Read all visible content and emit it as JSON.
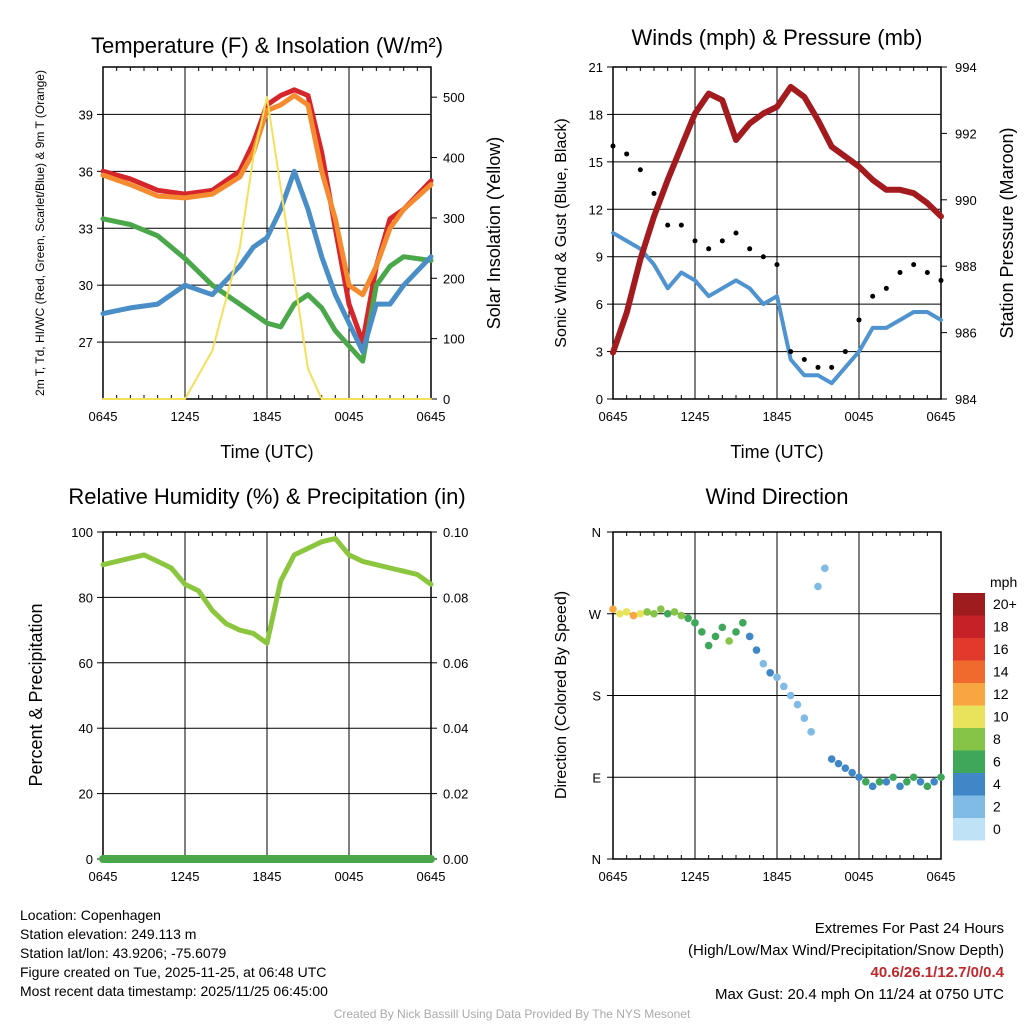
{
  "chart_data": [
    {
      "type": "line",
      "title": "Temperature (F) & Insolation (W/m²)",
      "xlabel": "Time (UTC)",
      "ylabel_left": "2m T, Td, HI/WC (Red, Green, Scarlet/Blue) & 9m T (Orange)",
      "ylabel_right": "Solar Insolation (Yellow)",
      "x_ticks": [
        "0645",
        "1245",
        "1845",
        "0045",
        "0645"
      ],
      "y_ticks_left": [
        "27",
        "30",
        "33",
        "36",
        "39"
      ],
      "y_ticks_right": [
        "0",
        "100",
        "200",
        "300",
        "400",
        "500"
      ],
      "ylim_left": [
        24,
        41.5
      ],
      "ylim_right": [
        0,
        550
      ],
      "x_hours": [
        0,
        2,
        4,
        6,
        8,
        10,
        11,
        12,
        13,
        14,
        15,
        16,
        17,
        18,
        19,
        20,
        21,
        22,
        24
      ],
      "series": [
        {
          "name": "2m T",
          "color": "#d7262b",
          "values": [
            36.0,
            35.6,
            35.0,
            34.8,
            35.0,
            36.0,
            37.5,
            39.5,
            40.0,
            40.3,
            40.0,
            37.0,
            33.0,
            29.0,
            27.0,
            31.0,
            33.5,
            34.0,
            35.5
          ]
        },
        {
          "name": "9m T",
          "color": "#f58b2f",
          "values": [
            35.8,
            35.3,
            34.7,
            34.6,
            34.8,
            35.7,
            37.0,
            39.2,
            39.5,
            40.0,
            39.5,
            36.0,
            33.5,
            30.0,
            29.5,
            31.0,
            33.0,
            34.0,
            35.3
          ]
        },
        {
          "name": "Td",
          "color": "#4aa84a",
          "values": [
            33.5,
            33.2,
            32.6,
            31.4,
            30.0,
            29.0,
            28.5,
            28.0,
            27.8,
            29.0,
            29.5,
            28.8,
            27.6,
            26.8,
            26.0,
            30.0,
            31.0,
            31.5,
            31.3
          ]
        },
        {
          "name": "HI/WC",
          "color": "#4a8ec8",
          "values": [
            28.5,
            28.8,
            29.0,
            30.0,
            29.5,
            31.0,
            32.0,
            32.5,
            34.0,
            36.0,
            34.0,
            31.5,
            29.5,
            28.0,
            26.5,
            29.0,
            29.0,
            30.0,
            31.5
          ]
        },
        {
          "name": "Solar Insolation",
          "color": "#f5e05a",
          "axis": "right",
          "values": [
            0,
            0,
            0,
            0,
            80,
            250,
            400,
            500,
            350,
            200,
            50,
            0,
            0,
            0,
            0,
            0,
            0,
            0,
            0
          ]
        }
      ]
    },
    {
      "type": "line",
      "title": "Winds (mph) & Pressure (mb)",
      "xlabel": "Time (UTC)",
      "ylabel_left": "Sonic Wind & Gust (Blue, Black)",
      "ylabel_right": "Station Pressure (Maroon)",
      "x_ticks": [
        "0645",
        "1245",
        "1845",
        "0045",
        "0645"
      ],
      "y_ticks_left": [
        "0",
        "3",
        "6",
        "9",
        "12",
        "15",
        "18",
        "21"
      ],
      "y_ticks_right": [
        "984",
        "986",
        "988",
        "990",
        "992",
        "994"
      ],
      "ylim_left": [
        0,
        21
      ],
      "ylim_right": [
        984,
        994
      ],
      "x_hours": [
        0,
        1,
        2,
        3,
        4,
        5,
        6,
        7,
        8,
        9,
        10,
        11,
        12,
        13,
        14,
        15,
        16,
        17,
        18,
        19,
        20,
        21,
        22,
        23,
        24
      ],
      "series": [
        {
          "name": "Sonic Wind",
          "color": "#4f93d0",
          "values": [
            10.5,
            10.0,
            9.5,
            8.5,
            7.0,
            8.0,
            7.5,
            6.5,
            7.0,
            7.5,
            7.0,
            6.0,
            6.5,
            2.5,
            1.5,
            1.5,
            1.0,
            2.0,
            3.0,
            4.5,
            4.5,
            5.0,
            5.5,
            5.5,
            5.0
          ]
        },
        {
          "name": "Gust",
          "color": "#000000",
          "style": "points",
          "values": [
            16.0,
            15.5,
            14.5,
            13.0,
            11.0,
            11.0,
            10.0,
            9.5,
            10.0,
            10.5,
            9.5,
            9.0,
            8.5,
            3.0,
            2.5,
            2.0,
            2.0,
            3.0,
            5.0,
            6.5,
            7.0,
            8.0,
            8.5,
            8.0,
            7.5
          ]
        },
        {
          "name": "Station Pressure",
          "color": "#a31b1f",
          "axis": "right",
          "values": [
            985.4,
            986.6,
            988.2,
            989.5,
            990.6,
            991.6,
            992.6,
            993.2,
            993.0,
            991.8,
            992.3,
            992.6,
            992.8,
            993.4,
            993.1,
            992.4,
            991.6,
            991.3,
            991.0,
            990.6,
            990.3,
            990.3,
            990.2,
            989.9,
            989.5
          ]
        }
      ]
    },
    {
      "type": "line",
      "title": "Relative Humidity (%) & Precipitation (in)",
      "ylabel_left": "Percent & Precipitation",
      "x_ticks": [
        "0645",
        "1245",
        "1845",
        "0045",
        "0645"
      ],
      "y_ticks_left": [
        "0",
        "20",
        "40",
        "60",
        "80",
        "100"
      ],
      "y_ticks_right": [
        "0.00",
        "0.02",
        "0.04",
        "0.06",
        "0.08",
        "0.10"
      ],
      "ylim_left": [
        0,
        100
      ],
      "ylim_right": [
        0,
        0.1
      ],
      "x_hours": [
        0,
        1,
        2,
        3,
        4,
        5,
        6,
        7,
        8,
        9,
        10,
        11,
        12,
        13,
        14,
        15,
        16,
        17,
        18,
        19,
        20,
        21,
        22,
        23,
        24
      ],
      "series": [
        {
          "name": "Relative Humidity",
          "color": "#8cc63f",
          "values": [
            90,
            91,
            92,
            93,
            91,
            89,
            84,
            82,
            76,
            72,
            70,
            69,
            66,
            85,
            93,
            95,
            97,
            98,
            93,
            91,
            90,
            89,
            88,
            87,
            84
          ]
        },
        {
          "name": "Precipitation",
          "color": "#4aa84a",
          "axis": "right",
          "values": [
            0,
            0,
            0,
            0,
            0,
            0,
            0,
            0,
            0,
            0,
            0,
            0,
            0,
            0,
            0,
            0,
            0,
            0,
            0,
            0,
            0,
            0,
            0,
            0,
            0
          ]
        }
      ]
    },
    {
      "type": "scatter",
      "title": "Wind Direction",
      "ylabel_left": "Direction (Colored By Speed)",
      "x_ticks": [
        "0645",
        "1245",
        "1845",
        "0045",
        "0645"
      ],
      "y_ticks_left": [
        "N",
        "E",
        "S",
        "W",
        "N"
      ],
      "ylim_left": [
        0,
        360
      ],
      "legend_title": "mph",
      "legend_labels": [
        "20+",
        "18",
        "16",
        "14",
        "12",
        "10",
        "8",
        "6",
        "4",
        "2",
        "0"
      ],
      "legend_colors": [
        "#9e1b1e",
        "#c62127",
        "#e2392d",
        "#f06a2e",
        "#f7a641",
        "#e8e35a",
        "#86c447",
        "#3ea75a",
        "#3f87c6",
        "#7fbbe5",
        "#bfe2f7"
      ],
      "points_hour": [
        0,
        0.5,
        1,
        1.5,
        2,
        2.5,
        3,
        3.5,
        4,
        4.5,
        5,
        5.5,
        6,
        6.5,
        7,
        7.5,
        8,
        8.5,
        9,
        9.5,
        10,
        10.5,
        11,
        11.5,
        12,
        12.5,
        13,
        13.5,
        14,
        14.5,
        15,
        15.5,
        16,
        16.5,
        17,
        17.5,
        18,
        18.5,
        19,
        19.5,
        20,
        20.5,
        21,
        21.5,
        22,
        22.5,
        23,
        23.5,
        24
      ],
      "points_dir": [
        275,
        270,
        272,
        268,
        270,
        272,
        270,
        275,
        270,
        272,
        268,
        265,
        260,
        250,
        235,
        245,
        255,
        240,
        250,
        260,
        245,
        230,
        215,
        205,
        200,
        190,
        180,
        170,
        155,
        140,
        300,
        320,
        110,
        105,
        100,
        95,
        90,
        85,
        80,
        85,
        85,
        90,
        80,
        85,
        90,
        85,
        80,
        85,
        90
      ],
      "points_speed": [
        11,
        10,
        9,
        12,
        10,
        8,
        7,
        7,
        6,
        7,
        8,
        5,
        6,
        5,
        6,
        5,
        6,
        7,
        6,
        5,
        4,
        3,
        2,
        3,
        2,
        2,
        1,
        1,
        1,
        1,
        1,
        1,
        3,
        3,
        4,
        4,
        4,
        5,
        4,
        6,
        4,
        5,
        4,
        5,
        6,
        4,
        5,
        4,
        5
      ]
    }
  ],
  "footer": {
    "location": "Location: Copenhagen",
    "elevation": "Station elevation: 249.113 m",
    "latlon": "Station lat/lon: 43.9206; -75.6079",
    "created": "Figure created on Tue, 2025-11-25, at 06:48 UTC",
    "timestamp": "Most recent data timestamp: 2025/11/25 06:45:00",
    "extremes_title": "Extremes For Past 24 Hours",
    "extremes_legend": "(High/Low/Max Wind/Precipitation/Snow Depth)",
    "extremes_values": "40.6/26.1/12.7/0/0.4",
    "max_gust": "Max Gust: 20.4 mph On 11/24 at 0750 UTC",
    "credit": "Created By Nick Bassill Using Data Provided By The NYS Mesonet"
  },
  "colors": {
    "grid": "#000000",
    "frame": "#000000"
  }
}
